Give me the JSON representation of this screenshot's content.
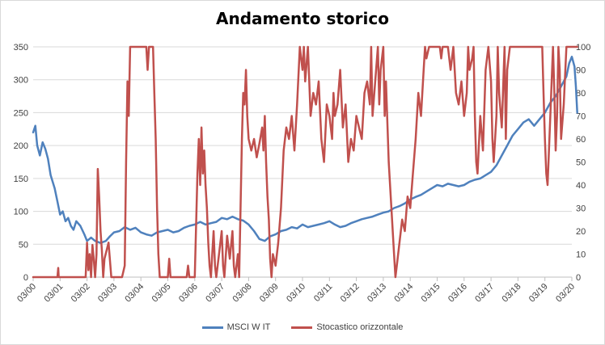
{
  "chart_data": {
    "type": "line",
    "title": "Andamento storico",
    "x": [
      "03/00",
      "03/01",
      "03/02",
      "03/03",
      "03/04",
      "03/05",
      "03/06",
      "03/07",
      "03/08",
      "03/09",
      "03/10",
      "03/11",
      "03/12",
      "03/13",
      "03/14",
      "03/15",
      "03/16",
      "03/17",
      "03/18",
      "03/19",
      "03/20"
    ],
    "y_left": {
      "min": 0,
      "max": 350,
      "ticks": [
        0,
        50,
        100,
        150,
        200,
        250,
        300,
        350
      ]
    },
    "y_right": {
      "min": 0,
      "max": 100,
      "ticks": [
        0,
        10,
        20,
        30,
        40,
        50,
        60,
        70,
        80,
        90,
        100
      ]
    },
    "grid": true,
    "legend_position": "bottom",
    "series": [
      {
        "name": "MSCI W IT",
        "axis": "left",
        "color": "#4f81bd",
        "points": [
          [
            0.0,
            220
          ],
          [
            0.08,
            230
          ],
          [
            0.15,
            200
          ],
          [
            0.25,
            185
          ],
          [
            0.35,
            205
          ],
          [
            0.45,
            195
          ],
          [
            0.55,
            180
          ],
          [
            0.65,
            155
          ],
          [
            0.8,
            135
          ],
          [
            0.9,
            115
          ],
          [
            1.0,
            95
          ],
          [
            1.1,
            100
          ],
          [
            1.2,
            85
          ],
          [
            1.3,
            90
          ],
          [
            1.4,
            78
          ],
          [
            1.5,
            72
          ],
          [
            1.6,
            85
          ],
          [
            1.75,
            78
          ],
          [
            1.9,
            65
          ],
          [
            2.0,
            55
          ],
          [
            2.15,
            60
          ],
          [
            2.3,
            55
          ],
          [
            2.5,
            52
          ],
          [
            2.7,
            55
          ],
          [
            2.85,
            62
          ],
          [
            3.0,
            68
          ],
          [
            3.2,
            70
          ],
          [
            3.4,
            76
          ],
          [
            3.6,
            72
          ],
          [
            3.8,
            75
          ],
          [
            4.0,
            68
          ],
          [
            4.2,
            65
          ],
          [
            4.4,
            63
          ],
          [
            4.6,
            68
          ],
          [
            4.8,
            70
          ],
          [
            5.0,
            72
          ],
          [
            5.2,
            68
          ],
          [
            5.4,
            70
          ],
          [
            5.6,
            75
          ],
          [
            5.8,
            78
          ],
          [
            6.0,
            80
          ],
          [
            6.2,
            84
          ],
          [
            6.4,
            80
          ],
          [
            6.6,
            82
          ],
          [
            6.8,
            84
          ],
          [
            7.0,
            90
          ],
          [
            7.2,
            88
          ],
          [
            7.4,
            92
          ],
          [
            7.6,
            88
          ],
          [
            7.8,
            86
          ],
          [
            8.0,
            80
          ],
          [
            8.2,
            70
          ],
          [
            8.4,
            58
          ],
          [
            8.6,
            55
          ],
          [
            8.8,
            62
          ],
          [
            9.0,
            65
          ],
          [
            9.2,
            70
          ],
          [
            9.4,
            72
          ],
          [
            9.6,
            76
          ],
          [
            9.8,
            74
          ],
          [
            10.0,
            80
          ],
          [
            10.2,
            76
          ],
          [
            10.4,
            78
          ],
          [
            10.6,
            80
          ],
          [
            10.8,
            82
          ],
          [
            11.0,
            85
          ],
          [
            11.2,
            80
          ],
          [
            11.4,
            76
          ],
          [
            11.6,
            78
          ],
          [
            11.8,
            82
          ],
          [
            12.0,
            85
          ],
          [
            12.2,
            88
          ],
          [
            12.4,
            90
          ],
          [
            12.6,
            92
          ],
          [
            12.8,
            95
          ],
          [
            13.0,
            98
          ],
          [
            13.2,
            100
          ],
          [
            13.4,
            105
          ],
          [
            13.6,
            108
          ],
          [
            13.8,
            112
          ],
          [
            14.0,
            118
          ],
          [
            14.2,
            122
          ],
          [
            14.4,
            125
          ],
          [
            14.6,
            130
          ],
          [
            14.8,
            135
          ],
          [
            15.0,
            140
          ],
          [
            15.2,
            138
          ],
          [
            15.4,
            142
          ],
          [
            15.6,
            140
          ],
          [
            15.8,
            138
          ],
          [
            16.0,
            140
          ],
          [
            16.2,
            145
          ],
          [
            16.4,
            148
          ],
          [
            16.6,
            150
          ],
          [
            16.8,
            155
          ],
          [
            17.0,
            160
          ],
          [
            17.2,
            170
          ],
          [
            17.4,
            185
          ],
          [
            17.6,
            200
          ],
          [
            17.8,
            215
          ],
          [
            18.0,
            225
          ],
          [
            18.2,
            235
          ],
          [
            18.4,
            240
          ],
          [
            18.6,
            230
          ],
          [
            18.8,
            240
          ],
          [
            19.0,
            250
          ],
          [
            19.2,
            265
          ],
          [
            19.4,
            275
          ],
          [
            19.6,
            290
          ],
          [
            19.8,
            305
          ],
          [
            19.9,
            325
          ],
          [
            20.0,
            335
          ],
          [
            20.1,
            320
          ],
          [
            20.15,
            290
          ],
          [
            20.2,
            250
          ]
        ]
      },
      {
        "name": "Stocastico orizzontale",
        "axis": "right",
        "color": "#c0504d",
        "points": [
          [
            0.0,
            0
          ],
          [
            0.9,
            0
          ],
          [
            0.93,
            4
          ],
          [
            0.95,
            0
          ],
          [
            1.95,
            0
          ],
          [
            2.0,
            15
          ],
          [
            2.05,
            3
          ],
          [
            2.1,
            10
          ],
          [
            2.15,
            0
          ],
          [
            2.2,
            14
          ],
          [
            2.25,
            8
          ],
          [
            2.3,
            0
          ],
          [
            2.35,
            10
          ],
          [
            2.4,
            47
          ],
          [
            2.45,
            35
          ],
          [
            2.5,
            20
          ],
          [
            2.55,
            12
          ],
          [
            2.6,
            0
          ],
          [
            2.65,
            8
          ],
          [
            2.8,
            15
          ],
          [
            2.9,
            0
          ],
          [
            3.3,
            0
          ],
          [
            3.4,
            5
          ],
          [
            3.45,
            50
          ],
          [
            3.5,
            85
          ],
          [
            3.55,
            70
          ],
          [
            3.6,
            100
          ],
          [
            4.2,
            100
          ],
          [
            4.25,
            90
          ],
          [
            4.3,
            100
          ],
          [
            4.45,
            100
          ],
          [
            4.5,
            80
          ],
          [
            4.55,
            60
          ],
          [
            4.6,
            30
          ],
          [
            4.65,
            10
          ],
          [
            4.7,
            0
          ],
          [
            5.0,
            0
          ],
          [
            5.05,
            8
          ],
          [
            5.1,
            0
          ],
          [
            5.7,
            0
          ],
          [
            5.75,
            5
          ],
          [
            5.8,
            0
          ],
          [
            6.0,
            0
          ],
          [
            6.1,
            45
          ],
          [
            6.15,
            60
          ],
          [
            6.2,
            40
          ],
          [
            6.25,
            65
          ],
          [
            6.3,
            45
          ],
          [
            6.35,
            55
          ],
          [
            6.4,
            40
          ],
          [
            6.45,
            30
          ],
          [
            6.5,
            15
          ],
          [
            6.55,
            5
          ],
          [
            6.6,
            0
          ],
          [
            6.65,
            10
          ],
          [
            6.7,
            20
          ],
          [
            6.75,
            5
          ],
          [
            6.8,
            0
          ],
          [
            6.9,
            10
          ],
          [
            7.0,
            20
          ],
          [
            7.05,
            5
          ],
          [
            7.1,
            0
          ],
          [
            7.2,
            18
          ],
          [
            7.3,
            8
          ],
          [
            7.4,
            20
          ],
          [
            7.45,
            5
          ],
          [
            7.5,
            0
          ],
          [
            7.6,
            10
          ],
          [
            7.65,
            0
          ],
          [
            7.7,
            30
          ],
          [
            7.75,
            60
          ],
          [
            7.8,
            80
          ],
          [
            7.85,
            75
          ],
          [
            7.9,
            90
          ],
          [
            7.95,
            70
          ],
          [
            8.0,
            60
          ],
          [
            8.1,
            55
          ],
          [
            8.2,
            60
          ],
          [
            8.3,
            52
          ],
          [
            8.4,
            58
          ],
          [
            8.5,
            65
          ],
          [
            8.55,
            55
          ],
          [
            8.6,
            70
          ],
          [
            8.65,
            50
          ],
          [
            8.7,
            35
          ],
          [
            8.75,
            25
          ],
          [
            8.8,
            8
          ],
          [
            8.85,
            0
          ],
          [
            8.9,
            10
          ],
          [
            9.0,
            5
          ],
          [
            9.1,
            15
          ],
          [
            9.2,
            30
          ],
          [
            9.3,
            55
          ],
          [
            9.4,
            65
          ],
          [
            9.5,
            60
          ],
          [
            9.6,
            70
          ],
          [
            9.7,
            55
          ],
          [
            9.8,
            75
          ],
          [
            9.9,
            100
          ],
          [
            10.0,
            90
          ],
          [
            10.05,
            100
          ],
          [
            10.1,
            85
          ],
          [
            10.2,
            100
          ],
          [
            10.3,
            70
          ],
          [
            10.4,
            80
          ],
          [
            10.5,
            75
          ],
          [
            10.6,
            85
          ],
          [
            10.7,
            60
          ],
          [
            10.8,
            50
          ],
          [
            10.9,
            75
          ],
          [
            11.0,
            70
          ],
          [
            11.1,
            60
          ],
          [
            11.15,
            80
          ],
          [
            11.2,
            70
          ],
          [
            11.3,
            75
          ],
          [
            11.4,
            90
          ],
          [
            11.5,
            65
          ],
          [
            11.6,
            75
          ],
          [
            11.7,
            50
          ],
          [
            11.8,
            60
          ],
          [
            11.9,
            55
          ],
          [
            12.0,
            70
          ],
          [
            12.1,
            65
          ],
          [
            12.2,
            60
          ],
          [
            12.3,
            80
          ],
          [
            12.4,
            85
          ],
          [
            12.5,
            75
          ],
          [
            12.55,
            100
          ],
          [
            12.6,
            70
          ],
          [
            12.7,
            85
          ],
          [
            12.8,
            100
          ],
          [
            12.85,
            75
          ],
          [
            12.9,
            90
          ],
          [
            13.0,
            100
          ],
          [
            13.05,
            70
          ],
          [
            13.1,
            85
          ],
          [
            13.2,
            50
          ],
          [
            13.3,
            30
          ],
          [
            13.4,
            10
          ],
          [
            13.45,
            0
          ],
          [
            13.5,
            5
          ],
          [
            13.6,
            15
          ],
          [
            13.7,
            25
          ],
          [
            13.8,
            20
          ],
          [
            13.9,
            35
          ],
          [
            14.0,
            30
          ],
          [
            14.1,
            45
          ],
          [
            14.2,
            60
          ],
          [
            14.3,
            80
          ],
          [
            14.4,
            70
          ],
          [
            14.5,
            90
          ],
          [
            14.55,
            100
          ],
          [
            14.6,
            95
          ],
          [
            14.7,
            100
          ],
          [
            15.1,
            100
          ],
          [
            15.15,
            95
          ],
          [
            15.2,
            100
          ],
          [
            15.4,
            100
          ],
          [
            15.5,
            90
          ],
          [
            15.6,
            100
          ],
          [
            15.7,
            80
          ],
          [
            15.8,
            75
          ],
          [
            15.9,
            85
          ],
          [
            16.0,
            70
          ],
          [
            16.1,
            80
          ],
          [
            16.15,
            100
          ],
          [
            16.2,
            90
          ],
          [
            16.3,
            95
          ],
          [
            16.35,
            100
          ],
          [
            16.4,
            70
          ],
          [
            16.45,
            50
          ],
          [
            16.5,
            45
          ],
          [
            16.6,
            70
          ],
          [
            16.7,
            55
          ],
          [
            16.8,
            90
          ],
          [
            16.9,
            100
          ],
          [
            17.0,
            85
          ],
          [
            17.05,
            60
          ],
          [
            17.1,
            50
          ],
          [
            17.2,
            70
          ],
          [
            17.25,
            100
          ],
          [
            17.3,
            80
          ],
          [
            17.4,
            65
          ],
          [
            17.5,
            100
          ],
          [
            17.55,
            60
          ],
          [
            17.6,
            90
          ],
          [
            17.7,
            100
          ],
          [
            18.9,
            100
          ],
          [
            18.95,
            80
          ],
          [
            19.0,
            60
          ],
          [
            19.05,
            45
          ],
          [
            19.1,
            40
          ],
          [
            19.15,
            55
          ],
          [
            19.2,
            70
          ],
          [
            19.3,
            100
          ],
          [
            19.35,
            80
          ],
          [
            19.4,
            55
          ],
          [
            19.45,
            70
          ],
          [
            19.5,
            100
          ],
          [
            19.55,
            90
          ],
          [
            19.6,
            60
          ],
          [
            19.7,
            75
          ],
          [
            19.8,
            100
          ],
          [
            20.2,
            100
          ]
        ]
      }
    ]
  }
}
